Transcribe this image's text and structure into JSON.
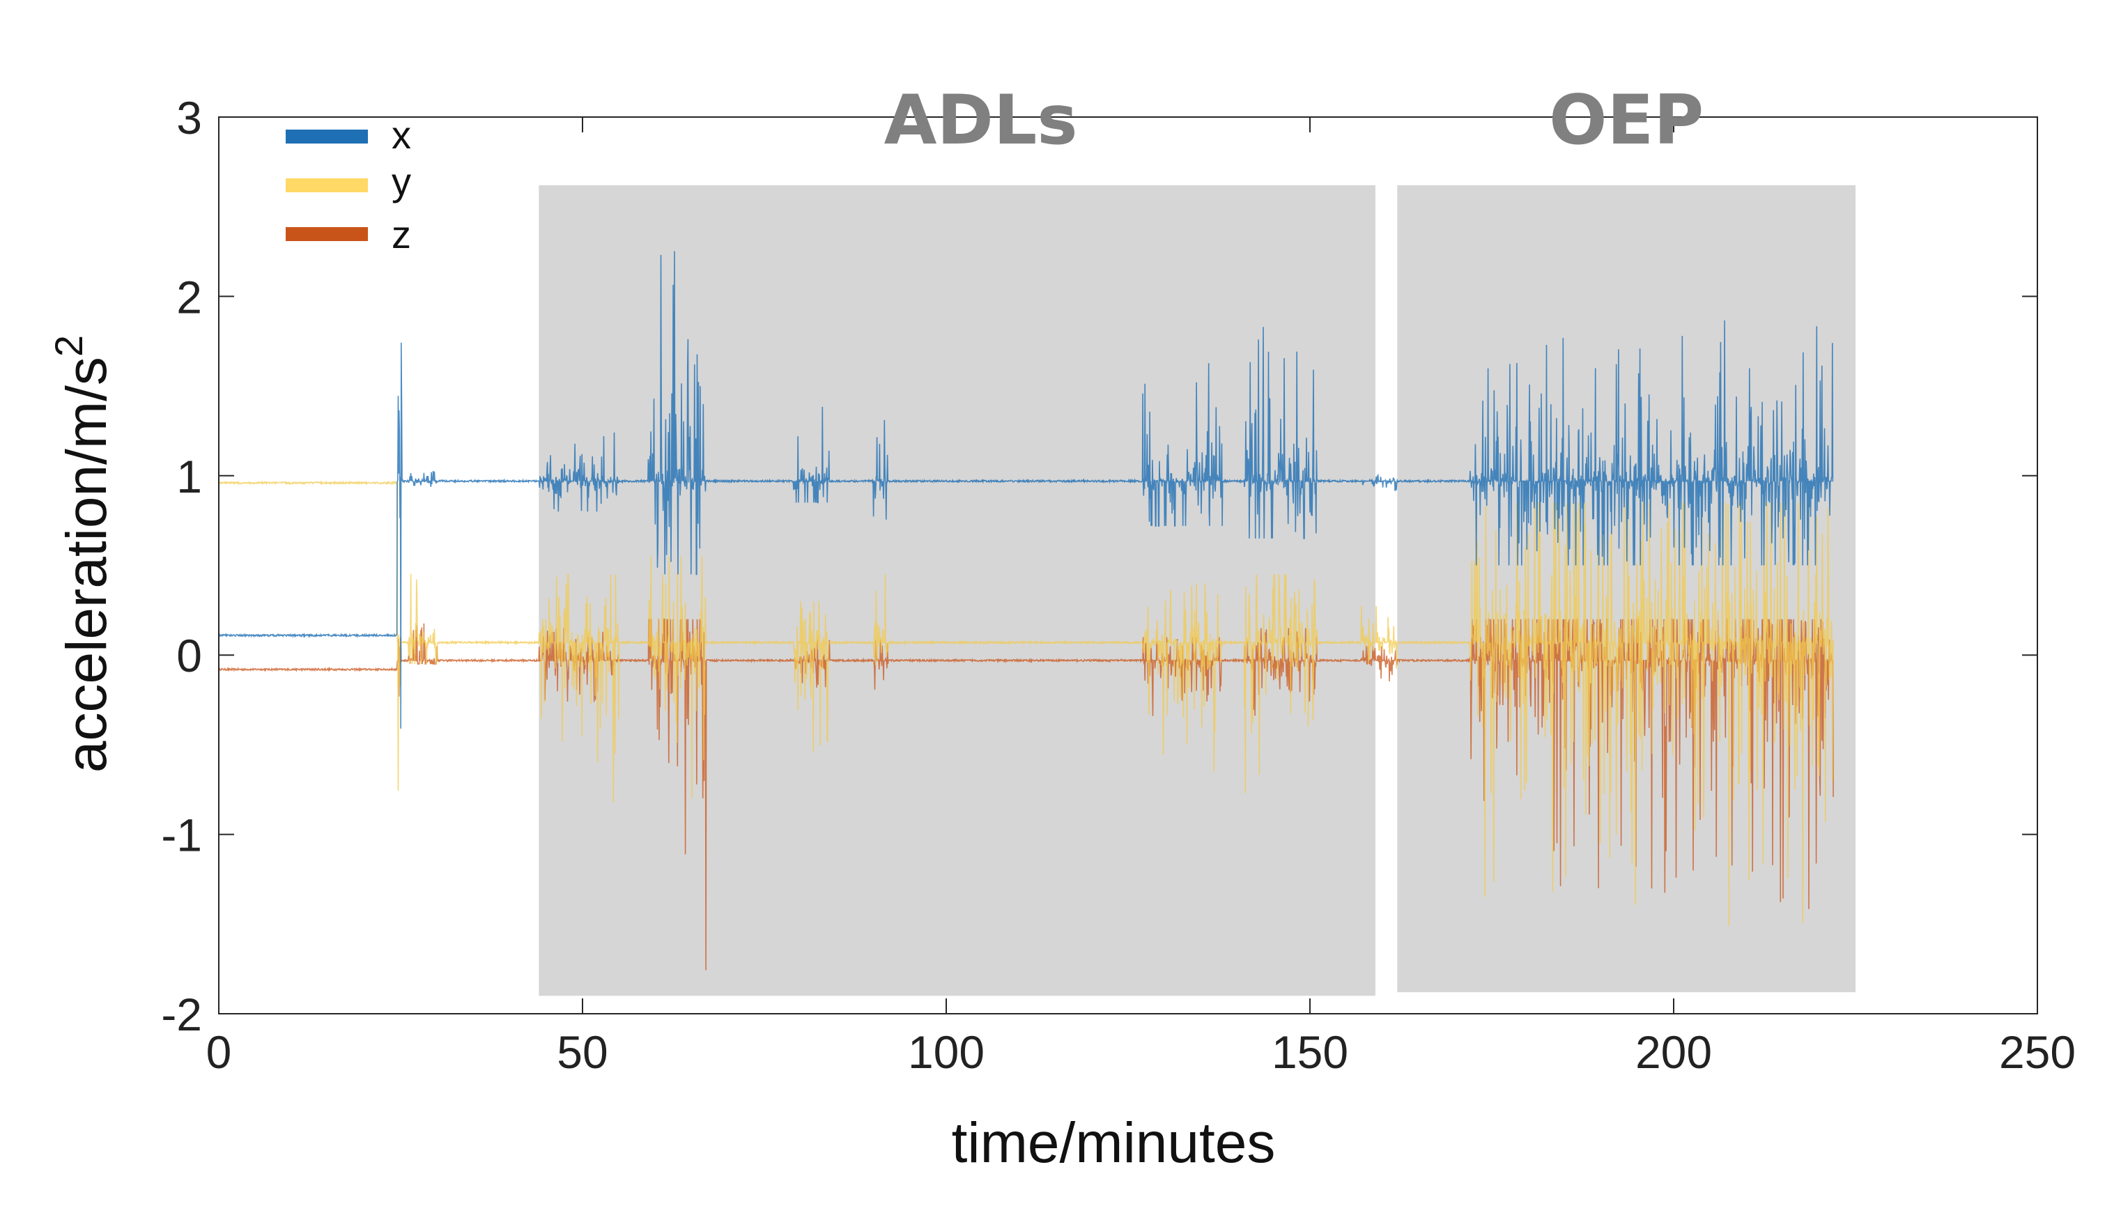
{
  "chart_data": {
    "type": "line",
    "xlabel": "time/minutes",
    "ylabel_main": "acceleration/m/s",
    "ylabel_sup": "2",
    "xlim": [
      0,
      250
    ],
    "ylim": [
      -2,
      3
    ],
    "xticks": [
      0,
      50,
      100,
      150,
      200,
      250
    ],
    "yticks": [
      -2,
      -1,
      0,
      1,
      2,
      3
    ],
    "xtick_labels": [
      "0",
      "50",
      "100",
      "150",
      "200",
      "250"
    ],
    "ytick_labels": [
      "-2",
      "-1",
      "0",
      "1",
      "2",
      "3"
    ],
    "grid": false,
    "legend_position": "top-left",
    "regions": [
      {
        "label": "ADLs",
        "x": [
          44,
          159
        ],
        "y": [
          -1.9,
          2.62
        ],
        "color": "#d6d6d6"
      },
      {
        "label": "OEP",
        "x": [
          162,
          225
        ],
        "y": [
          -1.88,
          2.62
        ],
        "color": "#d6d6d6"
      }
    ],
    "series": [
      {
        "name": "x",
        "color": "#1f6fb4",
        "baseline_before": 0.11,
        "baseline_after": 0.97,
        "switch_at": 24.5,
        "bursts": [
          [
            24.6,
            25.3,
            2.12,
            -0.45
          ],
          [
            26,
            30,
            1.05,
            0.85
          ],
          [
            44,
            55,
            1.3,
            0.8
          ],
          [
            59,
            67,
            2.3,
            0.45
          ],
          [
            79,
            84,
            1.55,
            0.85
          ],
          [
            90,
            92,
            1.45,
            0.7
          ],
          [
            127,
            138,
            1.7,
            0.72
          ],
          [
            141,
            151,
            2.05,
            0.65
          ],
          [
            157,
            162,
            1.05,
            0.9
          ],
          [
            172,
            222,
            1.9,
            0.5
          ]
        ]
      },
      {
        "name": "y",
        "color": "#f2c94c",
        "baseline_before": 0.96,
        "baseline_after": 0.07,
        "switch_at": 24.5,
        "bursts": [
          [
            24.6,
            25.3,
            1.05,
            -0.82
          ],
          [
            26,
            30,
            0.5,
            -0.05
          ],
          [
            44,
            55,
            0.45,
            -0.88
          ],
          [
            59,
            67,
            0.55,
            -0.85
          ],
          [
            79,
            84,
            0.3,
            -0.55
          ],
          [
            90,
            92,
            0.45,
            -0.5
          ],
          [
            127,
            138,
            0.4,
            -0.7
          ],
          [
            141,
            151,
            0.45,
            -0.8
          ],
          [
            157,
            162,
            0.3,
            -0.2
          ],
          [
            172,
            222,
            0.85,
            -1.55
          ]
        ]
      },
      {
        "name": "z",
        "color": "#c9541a",
        "baseline_before": -0.08,
        "baseline_after": -0.03,
        "switch_at": 24.5,
        "bursts": [
          [
            24.6,
            25.3,
            0.1,
            -0.6
          ],
          [
            26,
            30,
            0.25,
            -0.05
          ],
          [
            44,
            55,
            0.15,
            -0.3
          ],
          [
            59,
            67,
            0.2,
            -1.85
          ],
          [
            79,
            84,
            0.1,
            -0.2
          ],
          [
            90,
            92,
            0.1,
            -0.2
          ],
          [
            127,
            138,
            0.1,
            -0.35
          ],
          [
            141,
            151,
            0.15,
            -0.4
          ],
          [
            157,
            162,
            0.05,
            -0.15
          ],
          [
            172,
            222,
            0.2,
            -1.45
          ]
        ]
      }
    ]
  }
}
